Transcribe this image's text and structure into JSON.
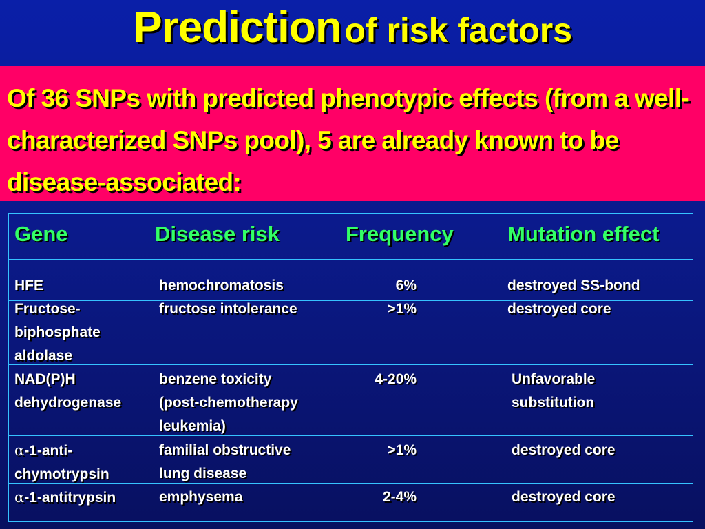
{
  "title": {
    "main": "Prediction",
    "rest": "of risk factors"
  },
  "intro": "Of 36 SNPs with predicted phenotypic effects (from a well-characterized SNPs pool), 5 are already known to be disease-associated:",
  "table": {
    "headers": {
      "gene": "Gene",
      "disease": "Disease risk",
      "frequency": "Frequency",
      "effect": "Mutation effect"
    },
    "rows": [
      {
        "gene": "HFE",
        "disease": "hemochromatosis",
        "frequency": "6%",
        "effect": "destroyed SS-bond"
      },
      {
        "gene": "Fructose-\nbiphosphate\naldolase",
        "disease": "fructose intolerance",
        "frequency": ">1%",
        "effect": "destroyed core"
      },
      {
        "gene": "NAD(P)H\ndehydrogenase",
        "disease": "benzene toxicity\n(post-chemotherapy\nleukemia)",
        "frequency": "4-20%",
        "effect": "Unfavorable\nsubstitution"
      },
      {
        "gene_prefix": "α",
        "gene": "-1-anti-\nchymotrypsin",
        "disease": "familial obstructive\nlung disease",
        "frequency": ">1%",
        "effect": "destroyed core"
      },
      {
        "gene_prefix": "α",
        "gene": "-1-antitrypsin",
        "disease": "emphysema",
        "frequency": "2-4%",
        "effect": "destroyed core"
      }
    ]
  }
}
